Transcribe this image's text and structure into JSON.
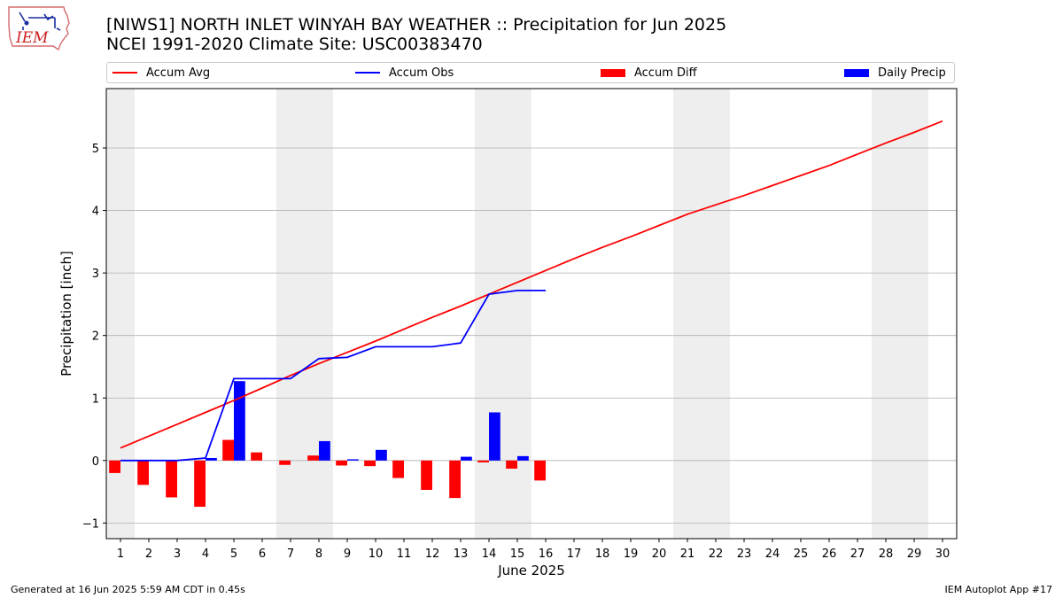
{
  "header": {
    "logo_text": "IEM",
    "title_line1": "[NIWS1] NORTH INLET WINYAH BAY WEATHER :: Precipitation for Jun 2025",
    "title_line2": "NCEI 1991-2020 Climate Site: USC00383470"
  },
  "footer": {
    "left": "Generated at 16 Jun 2025 5:59 AM CDT in 0.45s",
    "right": "IEM Autoplot App #17"
  },
  "colors": {
    "accum_avg": "#ff0000",
    "accum_obs": "#0000ff",
    "accum_diff": "#ff0000",
    "daily_precip": "#0000ff",
    "weekend_shade": "#eeeeee",
    "grid": "#b0b0b0"
  },
  "chart_data": {
    "type": "bar",
    "xlabel": "June 2025",
    "ylabel": "Precipitation [inch]",
    "xlim": [
      0.5,
      30.5
    ],
    "ylim": [
      -1.25,
      5.95
    ],
    "yticks": [
      -1,
      0,
      1,
      2,
      3,
      4,
      5
    ],
    "grid": true,
    "legend": "top",
    "legend_entries": [
      "Accum Avg",
      "Accum Obs",
      "Accum Diff",
      "Daily Precip"
    ],
    "shaded_days": [
      1,
      7,
      8,
      14,
      15,
      21,
      22,
      28,
      29
    ],
    "days": [
      1,
      2,
      3,
      4,
      5,
      6,
      7,
      8,
      9,
      10,
      11,
      12,
      13,
      14,
      15,
      16,
      17,
      18,
      19,
      20,
      21,
      22,
      23,
      24,
      25,
      26,
      27,
      28,
      29,
      30
    ],
    "series": [
      {
        "name": "Accum Avg",
        "type": "line",
        "values": [
          0.2,
          0.39,
          0.58,
          0.77,
          0.96,
          1.16,
          1.36,
          1.55,
          1.73,
          1.91,
          2.1,
          2.29,
          2.47,
          2.66,
          2.85,
          3.04,
          3.23,
          3.41,
          3.58,
          3.76,
          3.94,
          4.09,
          4.24,
          4.4,
          4.56,
          4.72,
          4.9,
          5.08,
          5.25,
          5.43
        ]
      },
      {
        "name": "Accum Obs",
        "type": "line",
        "values": [
          0.0,
          0.0,
          0.0,
          0.04,
          1.31,
          1.31,
          1.31,
          1.63,
          1.65,
          1.82,
          1.82,
          1.82,
          1.88,
          2.66,
          2.72,
          2.72
        ]
      },
      {
        "name": "Accum Diff",
        "type": "bar",
        "values": [
          -0.2,
          -0.39,
          -0.59,
          -0.74,
          0.33,
          0.13,
          -0.07,
          0.08,
          -0.08,
          -0.09,
          -0.28,
          -0.47,
          -0.6,
          -0.03,
          -0.13,
          -0.32
        ]
      },
      {
        "name": "Daily Precip",
        "type": "bar",
        "values": [
          0.0,
          0.0,
          0.0,
          0.04,
          1.27,
          0.0,
          0.0,
          0.31,
          0.02,
          0.17,
          0.0,
          0.0,
          0.06,
          0.77,
          0.07,
          0.0
        ]
      }
    ]
  }
}
